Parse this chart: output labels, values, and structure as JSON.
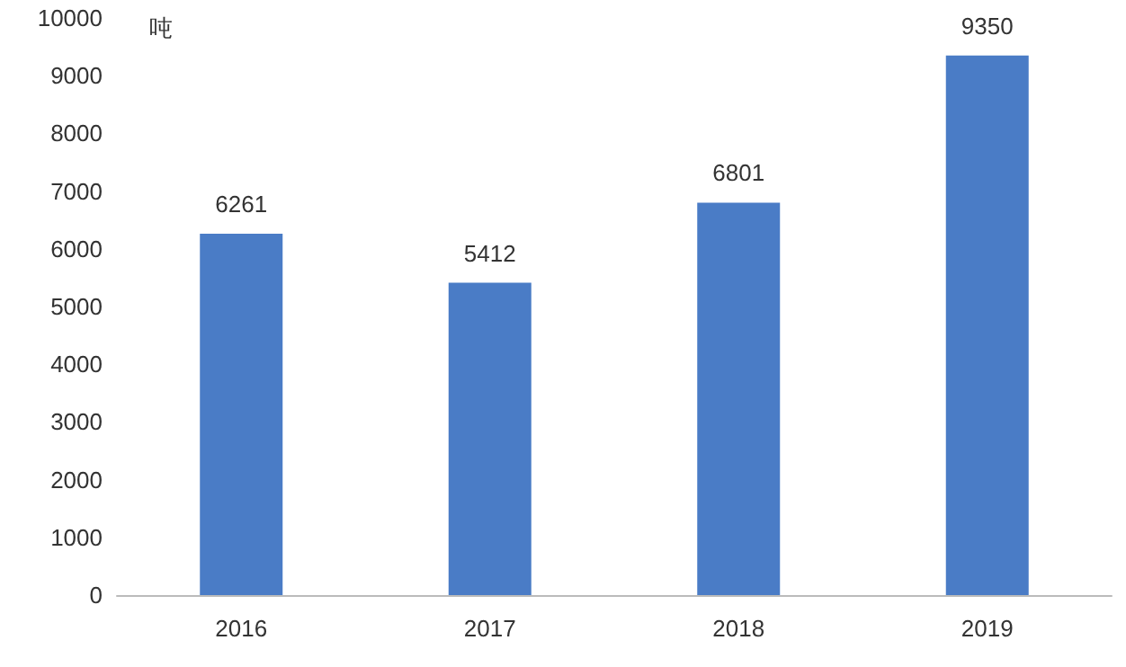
{
  "chart_data": {
    "type": "bar",
    "ylabel": "吨",
    "categories": [
      "2016",
      "2017",
      "2018",
      "2019"
    ],
    "values": [
      6261,
      5412,
      6801,
      9350
    ],
    "color": "#4a7cc6",
    "ylim": [
      0,
      10000
    ],
    "yticks": [
      0,
      1000,
      2000,
      3000,
      4000,
      5000,
      6000,
      7000,
      8000,
      9000,
      10000
    ],
    "grid": false,
    "data_labels": true
  }
}
